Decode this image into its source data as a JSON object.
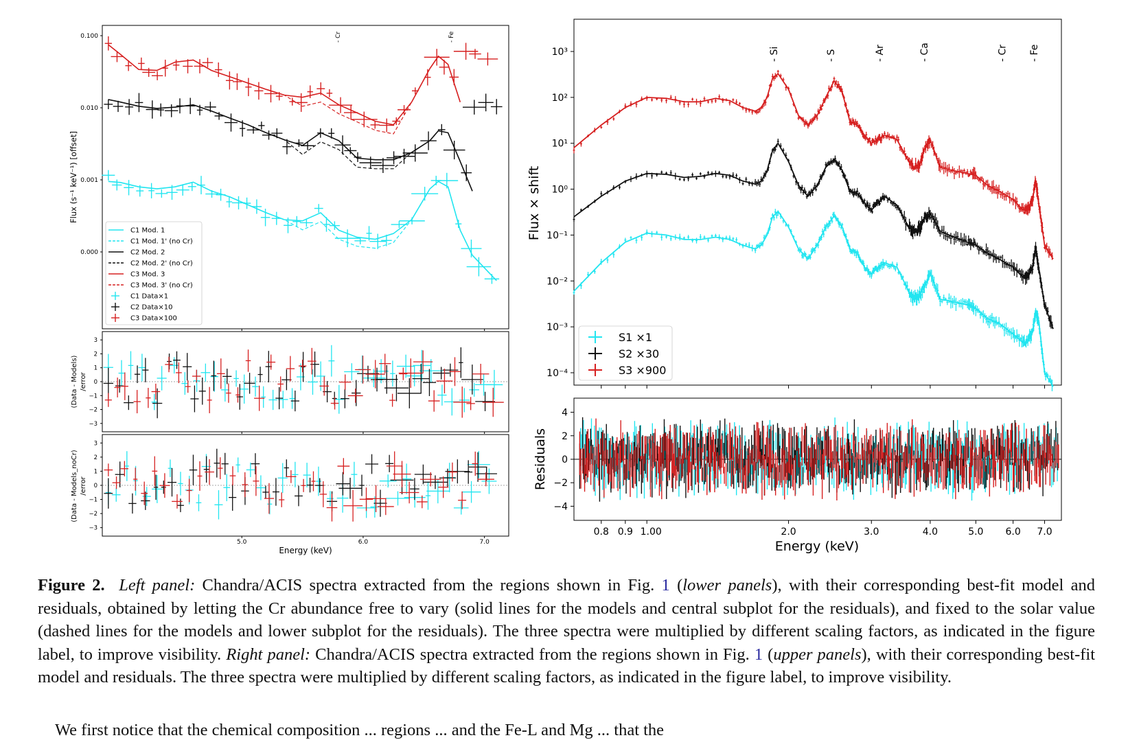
{
  "chart_data": [
    {
      "type": "line",
      "panel": "left",
      "ylabel": "Flux (s⁻¹ keV⁻¹) [offset]",
      "xlabel": "Energy (keV)",
      "x_ticks": [
        "5.0",
        "6.0",
        "7.0"
      ],
      "y_ticks": [
        "0.100",
        "0.010",
        "0.001",
        "0.000"
      ],
      "line_markers": [
        "Cr",
        "Fe"
      ],
      "legend": [
        "C1 Mod. 1",
        "C1 Mod. 1' (no Cr)",
        "C2 Mod. 2",
        "C2 Mod. 2' (no Cr)",
        "C3 Mod. 3",
        "C3 Mod. 3' (no Cr)",
        "C1 Data×1",
        "C2 Data×10",
        "C3 Data×100"
      ],
      "residual_panels": [
        {
          "ylabel": "(Data - Models) /error",
          "y_ticks": [
            "3",
            "2",
            "1",
            "0",
            "−1",
            "−2",
            "−3"
          ]
        },
        {
          "ylabel": "(Data - Models_noCr) /error",
          "y_ticks": [
            "3",
            "2",
            "1",
            "0",
            "−1",
            "−2",
            "−3"
          ]
        }
      ],
      "colors": {
        "C1": "#22e5f0",
        "C2": "#111111",
        "C3": "#d62020"
      },
      "series": [
        {
          "name": "C1",
          "x": [
            3.9,
            4.0,
            4.15,
            4.3,
            4.45,
            4.6,
            4.75,
            4.9,
            5.05,
            5.2,
            5.35,
            5.5,
            5.65,
            5.8,
            5.95,
            6.1,
            6.25,
            6.4,
            6.55,
            6.62,
            6.7,
            6.8,
            6.9,
            7.1
          ],
          "model": [
            0.00095,
            0.00092,
            0.0008,
            0.00075,
            0.0008,
            0.00093,
            0.0007,
            0.00058,
            0.00045,
            0.00035,
            0.00028,
            0.00027,
            0.00035,
            0.0002,
            0.00016,
            0.00015,
            0.00018,
            0.00028,
            0.00075,
            0.00095,
            0.0008,
            0.0002,
            9e-05,
            4e-05
          ]
        },
        {
          "name": "C2",
          "x": [
            3.9,
            4.0,
            4.15,
            4.3,
            4.45,
            4.6,
            4.75,
            4.9,
            5.05,
            5.2,
            5.35,
            5.5,
            5.65,
            5.8,
            5.95,
            6.1,
            6.25,
            6.4,
            6.55,
            6.62,
            6.7,
            6.8,
            6.9
          ],
          "model": [
            0.013,
            0.012,
            0.0105,
            0.0098,
            0.0102,
            0.011,
            0.009,
            0.0072,
            0.0058,
            0.0045,
            0.0036,
            0.003,
            0.0045,
            0.0035,
            0.002,
            0.0019,
            0.0019,
            0.0024,
            0.0035,
            0.0048,
            0.0045,
            0.0018,
            0.0007
          ]
        },
        {
          "name": "C3",
          "x": [
            3.9,
            4.0,
            4.15,
            4.3,
            4.45,
            4.6,
            4.75,
            4.9,
            5.05,
            5.2,
            5.35,
            5.5,
            5.65,
            5.8,
            5.95,
            6.1,
            6.25,
            6.4,
            6.55,
            6.62,
            6.7,
            6.8
          ],
          "model": [
            0.075,
            0.055,
            0.034,
            0.033,
            0.043,
            0.046,
            0.033,
            0.027,
            0.022,
            0.018,
            0.015,
            0.014,
            0.016,
            0.011,
            0.0085,
            0.0065,
            0.0058,
            0.012,
            0.035,
            0.052,
            0.04,
            0.012
          ]
        }
      ]
    },
    {
      "type": "line",
      "panel": "right",
      "ylabel": "Flux × shift",
      "xlabel": "Energy (keV)",
      "residual_ylabel": "Residuals",
      "x_ticks": [
        "0.8",
        "0.9",
        "1.00",
        "2.0",
        "3.0",
        "4.0",
        "5.0",
        "6.0",
        "7.0"
      ],
      "y_ticks": [
        "10³",
        "10²",
        "10¹",
        "10⁰",
        "10⁻¹",
        "10⁻²",
        "10⁻³",
        "10⁻⁴"
      ],
      "y_scale": "log",
      "ylim": [
        6e-05,
        5000
      ],
      "residual_ticks": [
        "4",
        "2",
        "0",
        "−2",
        "−4"
      ],
      "line_markers": [
        "Si",
        "S",
        "Ar",
        "Ca",
        "Cr",
        "Fe"
      ],
      "legend": [
        "S1 ×1",
        "S2 ×30",
        "S3 ×900"
      ],
      "colors": {
        "S1": "#22e5f0",
        "S2": "#111111",
        "S3": "#d62020"
      },
      "series": [
        {
          "name": "S1",
          "x": [
            0.7,
            0.8,
            0.9,
            1.0,
            1.1,
            1.2,
            1.3,
            1.4,
            1.5,
            1.6,
            1.7,
            1.75,
            1.8,
            1.85,
            1.9,
            2.0,
            2.1,
            2.2,
            2.3,
            2.4,
            2.5,
            2.6,
            2.7,
            2.8,
            2.9,
            3.0,
            3.1,
            3.2,
            3.4,
            3.6,
            3.7,
            3.8,
            3.9,
            4.0,
            4.2,
            4.5,
            4.8,
            5.0,
            5.3,
            5.6,
            6.0,
            6.3,
            6.45,
            6.6,
            6.7,
            6.8,
            7.0,
            7.3
          ],
          "values": [
            0.006,
            0.025,
            0.07,
            0.11,
            0.1,
            0.08,
            0.08,
            0.09,
            0.08,
            0.06,
            0.05,
            0.06,
            0.1,
            0.25,
            0.33,
            0.15,
            0.05,
            0.03,
            0.06,
            0.15,
            0.26,
            0.15,
            0.05,
            0.04,
            0.02,
            0.014,
            0.02,
            0.025,
            0.02,
            0.006,
            0.004,
            0.005,
            0.008,
            0.015,
            0.004,
            0.0035,
            0.003,
            0.0025,
            0.0015,
            0.0012,
            0.0007,
            0.00045,
            0.0005,
            0.0008,
            0.002,
            0.0014,
            0.0001,
            5e-05
          ]
        },
        {
          "name": "S2",
          "x": [
            0.7,
            0.8,
            0.9,
            1.0,
            1.1,
            1.2,
            1.3,
            1.4,
            1.5,
            1.6,
            1.7,
            1.75,
            1.8,
            1.85,
            1.9,
            2.0,
            2.1,
            2.2,
            2.3,
            2.4,
            2.5,
            2.6,
            2.7,
            2.8,
            2.9,
            3.0,
            3.1,
            3.2,
            3.4,
            3.6,
            3.7,
            3.8,
            3.9,
            4.0,
            4.2,
            4.5,
            4.8,
            5.0,
            5.3,
            5.6,
            6.0,
            6.3,
            6.45,
            6.6,
            6.7,
            6.8,
            7.0,
            7.3
          ],
          "values": [
            0.25,
            0.7,
            1.5,
            2.2,
            2.1,
            1.8,
            1.9,
            2.2,
            2.0,
            1.5,
            1.3,
            1.5,
            2.5,
            7,
            10,
            4,
            1.2,
            0.7,
            1.2,
            3,
            4.5,
            2.6,
            0.9,
            0.8,
            0.5,
            0.35,
            0.5,
            0.7,
            0.45,
            0.15,
            0.12,
            0.14,
            0.25,
            0.3,
            0.12,
            0.09,
            0.07,
            0.06,
            0.04,
            0.03,
            0.02,
            0.012,
            0.012,
            0.02,
            0.05,
            0.02,
            0.003,
            0.0009
          ]
        },
        {
          "name": "S3",
          "x": [
            0.7,
            0.8,
            0.9,
            1.0,
            1.1,
            1.2,
            1.3,
            1.4,
            1.5,
            1.6,
            1.7,
            1.75,
            1.8,
            1.85,
            1.9,
            2.0,
            2.1,
            2.2,
            2.3,
            2.4,
            2.5,
            2.6,
            2.7,
            2.8,
            2.9,
            3.0,
            3.1,
            3.2,
            3.4,
            3.6,
            3.7,
            3.8,
            3.9,
            4.0,
            4.2,
            4.5,
            4.8,
            5.0,
            5.3,
            5.6,
            6.0,
            6.3,
            6.45,
            6.6,
            6.7,
            6.8,
            7.0,
            7.3
          ],
          "values": [
            8,
            25,
            60,
            100,
            95,
            80,
            80,
            95,
            85,
            60,
            50,
            60,
            100,
            260,
            330,
            150,
            40,
            25,
            40,
            100,
            230,
            130,
            30,
            25,
            15,
            10,
            12,
            15,
            12,
            4,
            3,
            3.5,
            8,
            12,
            3,
            2.5,
            2.2,
            2,
            1.2,
            0.9,
            0.6,
            0.35,
            0.35,
            0.6,
            1.5,
            0.5,
            0.06,
            0.03
          ]
        }
      ]
    }
  ],
  "caption": {
    "label": "Figure 2.",
    "t1": "Left panel:",
    "t2": " Chandra/ACIS spectra extracted from the regions shown in Fig. ",
    "r1": "1",
    "t3": " (",
    "t4": "lower panels",
    "t5": "), with their corresponding best-fit model and residuals, obtained by letting the Cr abundance free to vary (solid lines for the models and central subplot for the residuals), and fixed to the solar value (dashed lines for the models and lower subplot for the residuals). The three spectra were multiplied by different scaling factors, as indicated in the figure label, to improve visibility. ",
    "t6": "Right panel:",
    "t7": " Chandra/ACIS spectra extracted from the regions shown in Fig. ",
    "r2": "1",
    "t8": " (",
    "t9": "upper panels",
    "t10": "), with their corresponding best-fit model and residuals. The three spectra were multiplied by different scaling factors, as indicated in the figure label, to improve visibility."
  },
  "body_fragment": "We first notice that the chemical composition ... regions ... and the Fe-L and Mg ... that the"
}
